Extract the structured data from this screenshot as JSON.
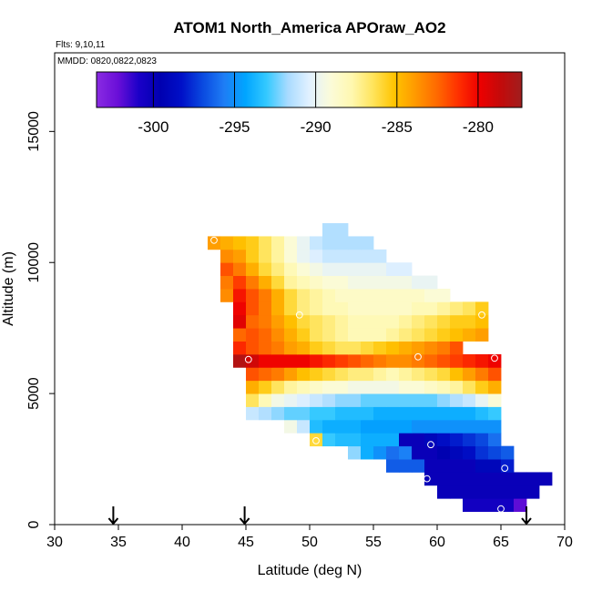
{
  "chart_data": {
    "type": "heatmap",
    "title": "ATOM1 North_America APOraw_AO2",
    "flights_label": "Flts: 9,10,11",
    "dates_label": "MMDD: 0820,0822,0823",
    "xlabel": "Latitude (deg N)",
    "ylabel": "Altitude (m)",
    "xlim": [
      30,
      70
    ],
    "ylim": [
      0,
      18000
    ],
    "x_ticks": [
      "30",
      "35",
      "40",
      "45",
      "50",
      "55",
      "60",
      "65",
      "70"
    ],
    "y_ticks": [
      "0",
      "5000",
      "10000",
      "15000"
    ],
    "colorbar": {
      "range": [
        -303.5,
        -277.3
      ],
      "ticks": [
        "-300",
        "-295",
        "-290",
        "-285",
        "-280"
      ],
      "colors": [
        "#8a2be2",
        "#6a0fd8",
        "#1a00c8",
        "#0000b0",
        "#0010c8",
        "#0a4ae0",
        "#1e7df5",
        "#00a5ff",
        "#34c9ff",
        "#a9dbff",
        "#e1f1ff",
        "#fbfbd9",
        "#fff8b0",
        "#ffe45c",
        "#ffc400",
        "#ff9900",
        "#ff6a00",
        "#ff3000",
        "#ee0000",
        "#c30a0a",
        "#a01e1e"
      ]
    },
    "marker_latitudes": [
      34.6,
      44.9,
      67.0
    ],
    "bin_width_deg": 1,
    "bin_height_m": 500,
    "row_altitudes": [
      750,
      1250,
      1750,
      2250,
      2750,
      3250,
      3750,
      4250,
      4750,
      5250,
      5750,
      6250,
      6750,
      7250,
      7750,
      8250,
      8750,
      9250,
      9750,
      10250,
      10750,
      11250
    ],
    "rows": [
      {
        "lat_start": 62,
        "values": [
          -300.5,
          -300.5,
          -300.5,
          -300.5,
          -302.0
        ]
      },
      {
        "lat_start": 60,
        "values": [
          -300.0,
          -300.0,
          -300.0,
          -300.0,
          -300.0,
          -300.0,
          -300.0,
          -300.0
        ]
      },
      {
        "lat_start": 59,
        "values": [
          -300.0,
          -300.0,
          -300.0,
          -300.0,
          -300.0,
          -300.0,
          -300.0,
          -300.0,
          -300.0,
          -300.0
        ]
      },
      {
        "lat_start": 56,
        "values": [
          -296.5,
          -296.5,
          -296.5,
          -300.0,
          -300.0,
          -300.0,
          -300.0,
          -299.0,
          -299.0,
          -298.0
        ]
      },
      {
        "lat_start": 53,
        "values": [
          -292.0,
          -294.0,
          -295.0,
          -296.0,
          -295.5,
          -300.0,
          -300.0,
          -299.5,
          -299.0,
          -298.5,
          -297.5,
          -297.0,
          -296.5
        ]
      },
      {
        "lat_start": 50,
        "values": [
          -286.0,
          -293.0,
          -293.5,
          -293.5,
          -294.0,
          -294.0,
          -294.0,
          -300.0,
          -300.0,
          -299.0,
          -298.5,
          -298.0,
          -297.5,
          -297.0,
          -296.0
        ]
      },
      {
        "lat_start": 48,
        "values": [
          -289.5,
          -291.0,
          -293.5,
          -294.0,
          -294.0,
          -294.0,
          -294.5,
          -294.5,
          -294.5,
          -294.5,
          -295.0,
          -295.0,
          -295.0,
          -295.0,
          -295.0,
          -295.0,
          -295.0
        ]
      },
      {
        "lat_start": 45,
        "values": [
          -291.0,
          -291.5,
          -292.0,
          -292.5,
          -292.5,
          -293.0,
          -293.0,
          -293.5,
          -293.5,
          -293.5,
          -294.0,
          -294.0,
          -294.0,
          -294.0,
          -294.0,
          -294.0,
          -294.0,
          -294.0,
          -293.5,
          -293.0
        ]
      },
      {
        "lat_start": 45,
        "values": [
          -286.5,
          -288.0,
          -289.5,
          -290.0,
          -290.5,
          -291.0,
          -291.5,
          -292.0,
          -292.0,
          -292.5,
          -292.5,
          -292.5,
          -292.5,
          -292.5,
          -292.5,
          -292.0,
          -291.5,
          -291.0,
          -290.0,
          -289.0
        ]
      },
      {
        "lat_start": 45,
        "values": [
          -284.5,
          -285.5,
          -286.5,
          -287.5,
          -288.0,
          -288.5,
          -289.0,
          -289.0,
          -289.5,
          -289.5,
          -289.5,
          -289.5,
          -289.0,
          -289.0,
          -288.5,
          -288.0,
          -287.5,
          -286.5,
          -285.5,
          -284.5
        ]
      },
      {
        "lat_start": 45,
        "values": [
          -282.0,
          -282.5,
          -283.0,
          -284.0,
          -285.0,
          -285.5,
          -286.0,
          -286.5,
          -287.0,
          -287.0,
          -287.5,
          -288.0,
          -287.5,
          -287.0,
          -286.5,
          -286.0,
          -285.0,
          -284.0,
          -283.0,
          -282.0
        ]
      },
      {
        "lat_start": 44,
        "values": [
          -278.0,
          -279.0,
          -280.0,
          -280.0,
          -280.0,
          -280.0,
          -280.5,
          -281.0,
          -281.5,
          -282.0,
          -282.5,
          -283.0,
          -283.5,
          -283.5,
          -283.0,
          -282.5,
          -282.0,
          -281.5,
          -281.0,
          -280.5,
          -280.0
        ]
      },
      {
        "lat_start": 44,
        "values": [
          -281.0,
          -282.0,
          -282.5,
          -283.0,
          -284.0,
          -284.5,
          -285.5,
          -286.0,
          -286.5,
          -286.5,
          -286.0,
          -285.5,
          -285.0,
          -284.5,
          -284.0,
          -283.5,
          -283.0,
          -282.0
        ]
      },
      {
        "lat_start": 44,
        "values": [
          -282.5,
          -282.0,
          -282.5,
          -283.5,
          -284.5,
          -285.5,
          -286.5,
          -287.0,
          -287.5,
          -288.0,
          -288.0,
          -288.0,
          -287.5,
          -287.0,
          -286.5,
          -286.0,
          -285.5,
          -285.0,
          -284.5,
          -284.0
        ]
      },
      {
        "lat_start": 44,
        "values": [
          -279.5,
          -282.5,
          -283.0,
          -284.0,
          -285.0,
          -286.0,
          -286.5,
          -287.0,
          -287.5,
          -288.0,
          -288.0,
          -288.0,
          -288.0,
          -287.5,
          -287.0,
          -286.5,
          -286.0,
          -285.5,
          -285.5,
          -285.0
        ]
      },
      {
        "lat_start": 44,
        "values": [
          -280.0,
          -282.0,
          -283.0,
          -284.5,
          -286.0,
          -287.0,
          -287.5,
          -288.0,
          -288.0,
          -288.5,
          -288.5,
          -288.5,
          -288.5,
          -288.5,
          -288.0,
          -288.0,
          -287.5,
          -287.0,
          -286.5,
          -285.5
        ]
      },
      {
        "lat_start": 43,
        "values": [
          -283.5,
          -280.5,
          -282.0,
          -283.0,
          -284.5,
          -286.0,
          -287.0,
          -287.5,
          -288.0,
          -288.5,
          -288.5,
          -288.5,
          -288.5,
          -288.5,
          -288.5,
          -288.5,
          -289.0,
          -289.0
        ]
      },
      {
        "lat_start": 43,
        "values": [
          -283.0,
          -281.5,
          -283.0,
          -284.5,
          -286.0,
          -287.5,
          -288.0,
          -288.5,
          -289.0,
          -289.0,
          -289.5,
          -289.5,
          -289.5,
          -289.5,
          -289.5,
          -290.0,
          -290.0
        ]
      },
      {
        "lat_start": 43,
        "values": [
          -282.0,
          -283.0,
          -284.5,
          -286.0,
          -287.0,
          -288.0,
          -289.0,
          -289.5,
          -290.0,
          -290.0,
          -290.0,
          -290.0,
          -290.0,
          -290.5,
          -290.5
        ]
      },
      {
        "lat_start": 43,
        "values": [
          -283.5,
          -284.0,
          -285.5,
          -286.5,
          -287.5,
          -289.0,
          -290.0,
          -290.5,
          -291.0,
          -291.0,
          -291.0,
          -291.0,
          -291.0
        ]
      },
      {
        "lat_start": 42,
        "values": [
          -284.0,
          -284.5,
          -285.0,
          -285.5,
          -286.5,
          -287.5,
          -289.0,
          -290.0,
          -291.0,
          -291.5,
          -291.5,
          -291.5,
          -291.5
        ]
      },
      {
        "lat_start": 51,
        "values": [
          -291.5,
          -291.5
        ]
      }
    ],
    "sample_points": [
      {
        "lat": 42.5,
        "alt": 10850
      },
      {
        "lat": 49.2,
        "alt": 8000
      },
      {
        "lat": 63.5,
        "alt": 8000
      },
      {
        "lat": 45.2,
        "alt": 6300
      },
      {
        "lat": 58.5,
        "alt": 6400
      },
      {
        "lat": 64.5,
        "alt": 6350
      },
      {
        "lat": 50.5,
        "alt": 3200
      },
      {
        "lat": 59.5,
        "alt": 3050
      },
      {
        "lat": 59.2,
        "alt": 1750
      },
      {
        "lat": 65.3,
        "alt": 2150
      },
      {
        "lat": 65.0,
        "alt": 600
      }
    ]
  }
}
